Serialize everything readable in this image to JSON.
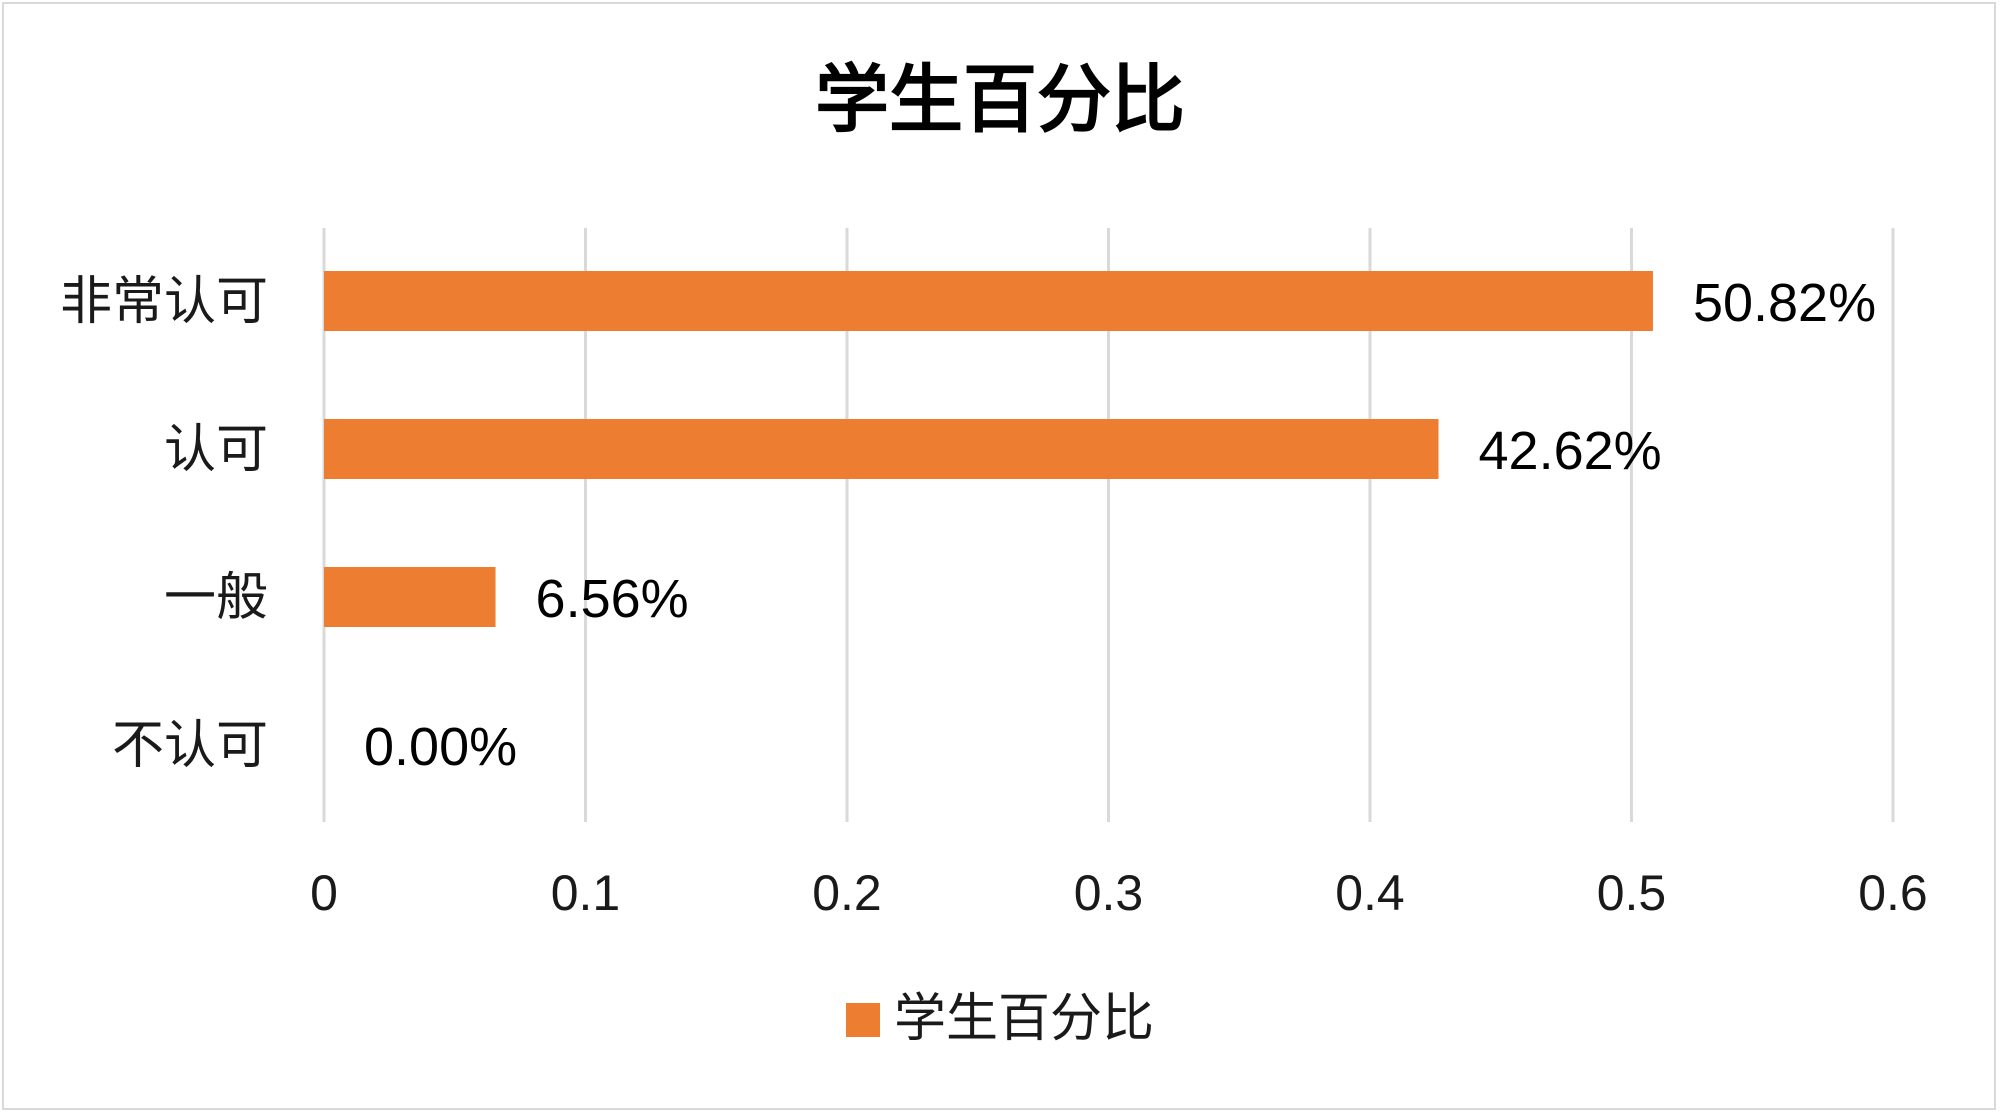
{
  "chart_data": {
    "type": "bar",
    "orientation": "horizontal",
    "title": "学生百分比",
    "categories": [
      "非常认可",
      "认可",
      "一般",
      "不认可"
    ],
    "series": [
      {
        "name": "学生百分比",
        "values": [
          0.5082,
          0.4262,
          0.0656,
          0.0
        ],
        "data_labels": [
          "50.82%",
          "42.62%",
          "6.56%",
          "0.00%"
        ],
        "color": "#ED7D31"
      }
    ],
    "xlim": [
      0,
      0.6
    ],
    "x_ticks": [
      "0",
      "0.1",
      "0.2",
      "0.3",
      "0.4",
      "0.5",
      "0.6"
    ],
    "xlabel": "",
    "ylabel": "",
    "grid": "vertical",
    "legend_position": "bottom"
  }
}
